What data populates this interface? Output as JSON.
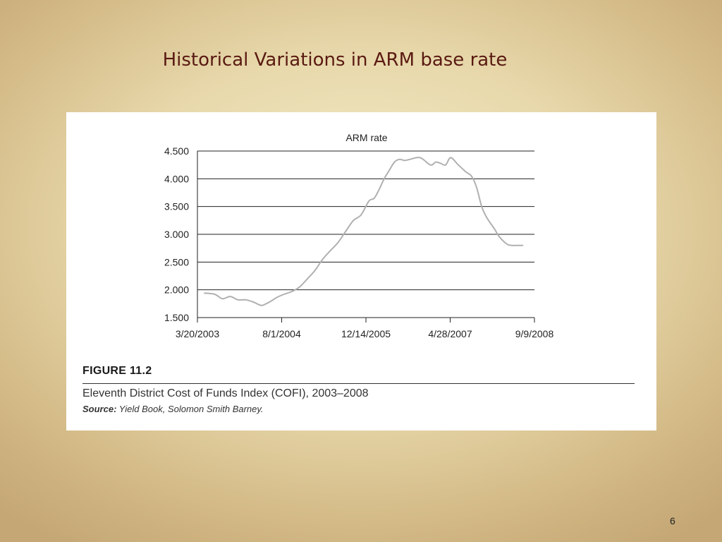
{
  "slide": {
    "title": "Historical Variations in ARM base rate",
    "page_number": "6"
  },
  "figure": {
    "label": "FIGURE 11.2",
    "caption": "Eleventh District Cost of Funds Index (COFI), 2003–2008",
    "source_label": "Source:",
    "source_text": "Yield Book, Solomon Smith Barney."
  },
  "chart_data": {
    "type": "line",
    "title": "ARM rate",
    "xlabel": "",
    "ylabel": "",
    "ylim": [
      1.5,
      4.5
    ],
    "yticks": [
      "4.500",
      "4.000",
      "3.500",
      "3.000",
      "2.500",
      "2.000",
      "1.500"
    ],
    "ytick_values": [
      4.5,
      4.0,
      3.5,
      3.0,
      2.5,
      2.0,
      1.5
    ],
    "xtick_labels": [
      "3/20/2003",
      "8/1/2004",
      "12/14/2005",
      "4/28/2007",
      "9/9/2008"
    ],
    "xlim": [
      "3/20/2003",
      "9/9/2008"
    ],
    "grid": "horizontal",
    "line_color": "#b0b0b0",
    "series": [
      {
        "x": [
          "5/1/2003",
          "7/1/2003",
          "8/15/2003",
          "10/1/2003",
          "11/15/2003",
          "1/1/2004",
          "2/15/2004",
          "4/1/2004",
          "5/1/2004",
          "6/1/2004",
          "7/1/2004",
          "8/15/2004",
          "10/1/2004",
          "11/15/2004",
          "1/1/2005",
          "2/15/2005",
          "4/1/2005",
          "5/15/2005",
          "7/1/2005",
          "8/15/2005",
          "10/1/2005",
          "11/15/2005",
          "1/1/2006",
          "2/1/2006",
          "3/1/2006",
          "4/1/2006",
          "5/1/2006",
          "6/1/2006",
          "7/1/2006",
          "8/1/2006",
          "9/1/2006",
          "11/1/2006",
          "1/1/2007",
          "2/1/2007",
          "3/1/2007",
          "4/1/2007",
          "5/1/2007",
          "6/15/2007",
          "8/1/2007",
          "9/1/2007",
          "10/1/2007",
          "11/1/2007",
          "12/1/2007",
          "1/15/2008",
          "2/15/2008",
          "4/1/2008",
          "5/1/2008",
          "6/1/2008",
          "7/1/2008"
        ],
        "values": [
          1.94,
          1.92,
          1.84,
          1.88,
          1.82,
          1.82,
          1.78,
          1.72,
          1.75,
          1.8,
          1.86,
          1.92,
          1.97,
          2.05,
          2.2,
          2.35,
          2.55,
          2.7,
          2.85,
          3.05,
          3.25,
          3.35,
          3.6,
          3.65,
          3.8,
          4.0,
          4.15,
          4.3,
          4.35,
          4.33,
          4.35,
          4.38,
          4.25,
          4.3,
          4.28,
          4.25,
          4.38,
          4.25,
          4.12,
          4.05,
          3.85,
          3.5,
          3.3,
          3.1,
          2.95,
          2.82,
          2.8,
          2.8,
          2.8
        ]
      }
    ]
  }
}
